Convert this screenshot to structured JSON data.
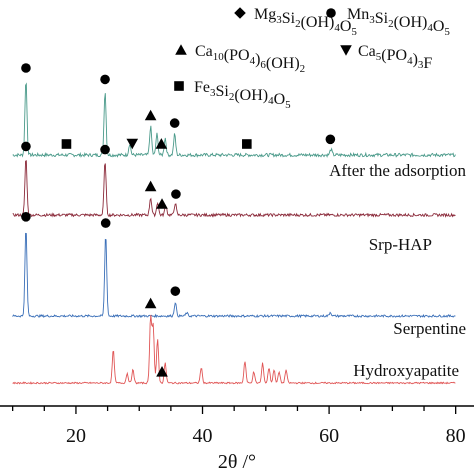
{
  "chart_data": {
    "type": "line",
    "xlabel": "2θ /°",
    "xlim": [
      8,
      81
    ],
    "xticks": [
      20,
      40,
      60,
      80
    ],
    "xtick_labels": [
      "20",
      "40",
      "60",
      "80"
    ],
    "grid": false,
    "legend": {
      "placement": "top-right",
      "entries": [
        {
          "marker": "diamond",
          "label_parts": [
            [
              "Mg",
              ""
            ],
            [
              "3",
              "sub"
            ],
            [
              "Si",
              ""
            ],
            [
              "2",
              "sub"
            ],
            [
              "(OH)",
              ""
            ],
            [
              "4",
              "sub"
            ],
            [
              "O",
              ""
            ],
            [
              "5",
              "sub"
            ]
          ]
        },
        {
          "marker": "circle",
          "label_parts": [
            [
              "Mn",
              ""
            ],
            [
              "3",
              "sub"
            ],
            [
              "Si",
              ""
            ],
            [
              "2",
              "sub"
            ],
            [
              "(OH)",
              ""
            ],
            [
              "4",
              "sub"
            ],
            [
              "O",
              ""
            ],
            [
              "5",
              "sub"
            ]
          ]
        },
        {
          "marker": "triangle-up",
          "label_parts": [
            [
              "Ca",
              ""
            ],
            [
              "10",
              "sub"
            ],
            [
              "(PO",
              ""
            ],
            [
              "4",
              "sub"
            ],
            [
              ")",
              ""
            ],
            [
              "6",
              "sub"
            ],
            [
              "(OH)",
              ""
            ],
            [
              "2",
              "sub"
            ]
          ]
        },
        {
          "marker": "triangle-down",
          "label_parts": [
            [
              "Ca",
              ""
            ],
            [
              "5",
              "sub"
            ],
            [
              "(PO",
              ""
            ],
            [
              "4",
              "sub"
            ],
            [
              ")",
              ""
            ],
            [
              "3",
              "sub"
            ],
            [
              "F",
              ""
            ]
          ]
        },
        {
          "marker": "square",
          "label_parts": [
            [
              "Fe",
              ""
            ],
            [
              "3",
              "sub"
            ],
            [
              "Si",
              ""
            ],
            [
              "2",
              "sub"
            ],
            [
              "(OH)",
              ""
            ],
            [
              "4",
              "sub"
            ],
            [
              "O",
              ""
            ],
            [
              "5",
              "sub"
            ]
          ]
        }
      ]
    },
    "series": [
      {
        "name": "After the adsorption",
        "color": "#4a9a8a",
        "peaks": [
          [
            12.1,
            0.8
          ],
          [
            24.6,
            0.68
          ],
          [
            28.5,
            0.12
          ],
          [
            31.8,
            0.3
          ],
          [
            32.8,
            0.22
          ],
          [
            34.1,
            0.18
          ],
          [
            35.6,
            0.22
          ],
          [
            60.3,
            0.06
          ]
        ],
        "markers": [
          {
            "type": "circle",
            "x": 12.1
          },
          {
            "type": "circle",
            "x": 24.6
          },
          {
            "type": "square",
            "x": 18.5
          },
          {
            "type": "triangle-down",
            "x": 28.9
          },
          {
            "type": "triangle-up",
            "x": 31.8
          },
          {
            "type": "triangle-up",
            "x": 33.5
          },
          {
            "type": "circle",
            "x": 35.6
          },
          {
            "type": "square",
            "x": 47.0
          },
          {
            "type": "circle",
            "x": 60.2
          }
        ]
      },
      {
        "name": "Srp-HAP",
        "color": "#8b2a3a",
        "peaks": [
          [
            12.1,
            0.72
          ],
          [
            24.6,
            0.68
          ],
          [
            31.8,
            0.22
          ],
          [
            32.9,
            0.16
          ],
          [
            34.2,
            0.12
          ],
          [
            35.7,
            0.15
          ]
        ],
        "markers": [
          {
            "type": "circle",
            "x": 12.1
          },
          {
            "type": "circle",
            "x": 24.6
          },
          {
            "type": "triangle-up",
            "x": 31.8
          },
          {
            "type": "triangle-up",
            "x": 33.6
          },
          {
            "type": "circle",
            "x": 35.8
          }
        ]
      },
      {
        "name": "Serpentine",
        "color": "#3a6fb8",
        "peaks": [
          [
            12.1,
            1.4
          ],
          [
            24.7,
            1.3
          ],
          [
            35.7,
            0.22
          ],
          [
            37.5,
            0.05
          ],
          [
            60.2,
            0.06
          ]
        ],
        "markers": [
          {
            "type": "circle",
            "x": 12.1
          },
          {
            "type": "circle",
            "x": 24.7
          },
          {
            "type": "circle",
            "x": 35.7
          }
        ]
      },
      {
        "name": "Hydroxyapatite",
        "color": "#e05555",
        "peaks": [
          [
            25.9,
            0.75
          ],
          [
            28.1,
            0.22
          ],
          [
            29.0,
            0.3
          ],
          [
            31.8,
            1.5
          ],
          [
            32.2,
            1.3
          ],
          [
            32.9,
            1.0
          ],
          [
            34.1,
            0.45
          ],
          [
            39.8,
            0.35
          ],
          [
            46.7,
            0.5
          ],
          [
            48.1,
            0.25
          ],
          [
            49.5,
            0.45
          ],
          [
            50.5,
            0.35
          ],
          [
            51.3,
            0.3
          ],
          [
            52.1,
            0.25
          ],
          [
            53.2,
            0.3
          ]
        ],
        "markers": [
          {
            "type": "triangle-up",
            "x": 31.8
          },
          {
            "type": "triangle-up",
            "x": 33.6
          }
        ]
      }
    ]
  }
}
